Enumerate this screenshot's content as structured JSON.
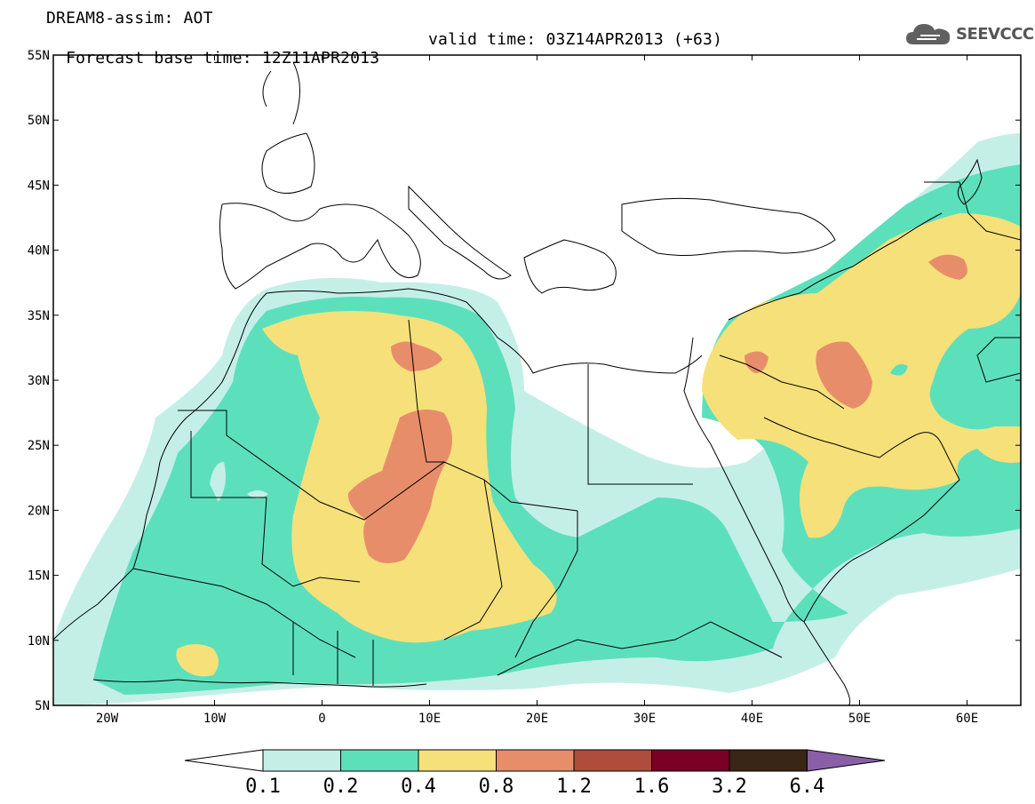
{
  "header": {
    "line1": "DREAM8-assim: AOT",
    "base_time": "Forecast base time: 12Z11APR2013",
    "valid_time": "valid time: 03Z14APR2013 (+63)"
  },
  "logo": {
    "text": "SEEVCCC",
    "icon": "cloud-icon"
  },
  "map": {
    "lon_range": [
      -25,
      65
    ],
    "lat_range": [
      5,
      55
    ],
    "lat_ticks": [
      {
        "value": 55,
        "label": "55N"
      },
      {
        "value": 50,
        "label": "50N"
      },
      {
        "value": 45,
        "label": "45N"
      },
      {
        "value": 40,
        "label": "40N"
      },
      {
        "value": 35,
        "label": "35N"
      },
      {
        "value": 30,
        "label": "30N"
      },
      {
        "value": 25,
        "label": "25N"
      },
      {
        "value": 20,
        "label": "20N"
      },
      {
        "value": 15,
        "label": "15N"
      },
      {
        "value": 10,
        "label": "10N"
      },
      {
        "value": 5,
        "label": "5N"
      }
    ],
    "lon_ticks": [
      {
        "value": -20,
        "label": "20W"
      },
      {
        "value": -10,
        "label": "10W"
      },
      {
        "value": 0,
        "label": "0"
      },
      {
        "value": 10,
        "label": "10E"
      },
      {
        "value": 20,
        "label": "20E"
      },
      {
        "value": 30,
        "label": "30E"
      },
      {
        "value": 40,
        "label": "40E"
      },
      {
        "value": 50,
        "label": "50E"
      },
      {
        "value": 60,
        "label": "60E"
      }
    ]
  },
  "colorbar": {
    "labels": [
      "0.1",
      "0.2",
      "0.4",
      "0.8",
      "1.2",
      "1.6",
      "3.2",
      "6.4"
    ],
    "colors": [
      "#ffffff",
      "#c4efe7",
      "#5ce0bb",
      "#f6e07a",
      "#e88d6a",
      "#b04c3b",
      "#7b0025",
      "#3a2516",
      "#8a5fa8"
    ]
  }
}
